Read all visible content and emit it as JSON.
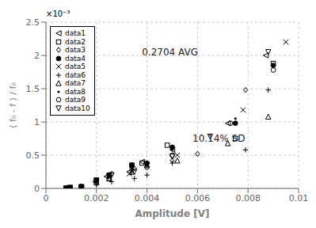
{
  "chart_data": {
    "type": "scatter",
    "xlabel": "Amplitude [V]",
    "ylabel": "( f₀ - f ) / f₀",
    "annotations": [
      {
        "text": "×10⁻³"
      },
      {
        "text": "0.2704 AVG",
        "x": 0.0038,
        "y": 0.00205
      },
      {
        "text": "10.14% SD",
        "x": 0.0058,
        "y": 0.00075
      }
    ],
    "xlim": [
      0,
      0.01
    ],
    "ylim": [
      0,
      0.0025
    ],
    "xticks": [
      0,
      0.002,
      0.004,
      0.006,
      0.008,
      0.01
    ],
    "yticks": [
      0,
      {
        "value": 0.0005,
        "label": "0.5"
      },
      {
        "value": 0.001,
        "label": "1"
      },
      {
        "value": 0.0015,
        "label": "1.5"
      },
      {
        "value": 0.002,
        "label": "2"
      },
      {
        "value": 0.0025,
        "label": "2.5"
      }
    ],
    "grid": true,
    "legend": "upper left",
    "series": [
      {
        "name": "data1",
        "color": "#000000",
        "marker": "triangle-left",
        "x": [
          0.0008,
          0.00095,
          0.0014,
          0.00195,
          0.0024,
          0.0033,
          0.0038,
          0.005,
          0.0072,
          0.0087
        ],
        "values": [
          0.0,
          1e-05,
          2e-05,
          0.0001,
          0.00018,
          0.00025,
          0.0004,
          0.00058,
          0.00098,
          0.002
        ]
      },
      {
        "name": "data2",
        "color": "#000000",
        "marker": "square",
        "x": [
          0.0008,
          0.00095,
          0.0014,
          0.002,
          0.0025,
          0.0034,
          0.0038,
          0.0048,
          0.0075,
          0.009
        ],
        "values": [
          0.0,
          1e-05,
          2e-05,
          0.00012,
          0.0002,
          0.00035,
          0.00038,
          0.00065,
          0.00075,
          0.00188
        ]
      },
      {
        "name": "data3",
        "color": "#000000",
        "marker": "diamond",
        "x": [
          0.0008,
          0.00095,
          0.0014,
          0.002,
          0.0026,
          0.0035,
          0.004,
          0.005,
          0.006,
          0.0079
        ],
        "values": [
          0.0,
          1e-05,
          2e-05,
          0.00012,
          0.00022,
          0.0003,
          0.00038,
          0.00042,
          0.00052,
          0.00148
        ]
      },
      {
        "name": "data4",
        "color": "#000000",
        "marker": "circle-filled",
        "x": [
          0.0008,
          0.00095,
          0.0014,
          0.002,
          0.0025,
          0.0034,
          0.004,
          0.005,
          0.0075,
          0.009
        ],
        "values": [
          0.0,
          1e-05,
          3e-05,
          0.00012,
          0.0002,
          0.00035,
          0.00038,
          0.00062,
          0.00098,
          0.00185
        ]
      },
      {
        "name": "data5",
        "color": "#000000",
        "marker": "x",
        "x": [
          0.0008,
          0.00095,
          0.0014,
          0.002,
          0.0025,
          0.0033,
          0.004,
          0.0052,
          0.0078,
          0.0095
        ],
        "values": [
          0.0,
          1e-05,
          2e-05,
          0.00012,
          0.00018,
          0.00022,
          0.00035,
          0.0005,
          0.00118,
          0.0022
        ]
      },
      {
        "name": "data6",
        "color": "#000000",
        "marker": "plus",
        "x": [
          0.0008,
          0.00095,
          0.0014,
          0.002,
          0.0026,
          0.0035,
          0.004,
          0.005,
          0.0079,
          0.0088
        ],
        "values": [
          0.0,
          1e-05,
          2e-05,
          5e-05,
          0.0001,
          0.00015,
          0.0002,
          0.00038,
          0.00058,
          0.00148
        ]
      },
      {
        "name": "data7",
        "color": "#000000",
        "marker": "triangle-up",
        "x": [
          0.0008,
          0.00095,
          0.0014,
          0.002,
          0.0025,
          0.0034,
          0.004,
          0.0052,
          0.0072,
          0.0088
        ],
        "values": [
          0.0,
          1e-05,
          2e-05,
          0.0001,
          0.00015,
          0.00025,
          0.00035,
          0.00042,
          0.00068,
          0.00108
        ]
      },
      {
        "name": "data8",
        "color": "#000000",
        "marker": "point",
        "x": [
          0.0008,
          0.00095,
          0.0014,
          0.002,
          0.0025,
          0.0034,
          0.004,
          0.005,
          0.0075,
          0.009
        ],
        "values": [
          0.0,
          1e-05,
          2e-05,
          0.00012,
          0.0002,
          0.0003,
          0.00035,
          0.00058,
          0.00105,
          0.00185
        ]
      },
      {
        "name": "data9",
        "color": "#000000",
        "marker": "circle",
        "x": [
          0.0008,
          0.00095,
          0.0014,
          0.002,
          0.0025,
          0.0034,
          0.004,
          0.005,
          0.0073,
          0.009
        ],
        "values": [
          0.0,
          1e-05,
          2e-05,
          0.00012,
          0.00015,
          0.00028,
          0.00032,
          0.0005,
          0.00098,
          0.00178
        ]
      },
      {
        "name": "data10",
        "color": "#000000",
        "marker": "triangle-down",
        "x": [
          0.0008,
          0.00095,
          0.0014,
          0.002,
          0.0026,
          0.0035,
          0.004,
          0.005,
          0.0065,
          0.0088
        ],
        "values": [
          0.0,
          1e-05,
          2e-05,
          0.00012,
          0.0002,
          0.00025,
          0.00035,
          0.00048,
          0.00078,
          0.00205
        ]
      }
    ]
  }
}
